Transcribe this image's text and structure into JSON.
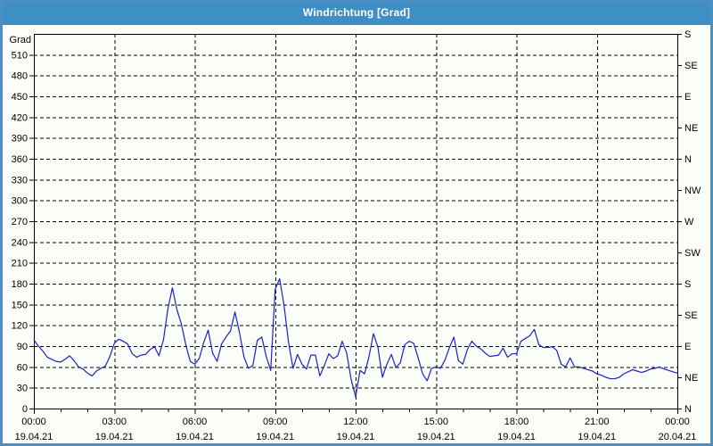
{
  "window": {
    "title": "Windrichtung [Grad]",
    "colors": {
      "titlebar": "#3f8fc7",
      "title_text": "#ffffff",
      "frame": "#4a90c6",
      "background": "#fbfdf9",
      "plot_border": "#000000",
      "grid": "#000000",
      "line": "#1f1fc8"
    }
  },
  "chart_data": {
    "type": "line",
    "title": "Windrichtung [Grad]",
    "y_left": {
      "label": "Grad",
      "min": 0,
      "max": 540,
      "tick_step": 30,
      "tick_labels": [
        "0",
        "30",
        "60",
        "90",
        "120",
        "150",
        "180",
        "210",
        "240",
        "270",
        "300",
        "330",
        "360",
        "390",
        "420",
        "450",
        "480",
        "510"
      ]
    },
    "y_right": {
      "tick_step_degrees": 45,
      "labels_top_to_bottom": [
        "S",
        "SE",
        "E",
        "NE",
        "N",
        "NW",
        "W",
        "SW",
        "S",
        "SE",
        "E",
        "NE",
        "N"
      ]
    },
    "x_axis": {
      "hours_span": 24,
      "minor_tick_hours": 1,
      "major_tick_hours": 3,
      "major_ticks": [
        {
          "time": "00:00",
          "date": "19.04.21"
        },
        {
          "time": "03:00",
          "date": "19.04.21"
        },
        {
          "time": "06:00",
          "date": "19.04.21"
        },
        {
          "time": "09:00",
          "date": "19.04.21"
        },
        {
          "time": "12:00",
          "date": "19.04.21"
        },
        {
          "time": "15:00",
          "date": "19.04.21"
        },
        {
          "time": "18:00",
          "date": "19.04.21"
        },
        {
          "time": "21:00",
          "date": "19.04.21"
        },
        {
          "time": "00:00",
          "date": "20.04.21"
        }
      ]
    },
    "series": [
      {
        "color": "#1f1fc8",
        "sample_interval_minutes": 10,
        "start_time": "00:00",
        "values": [
          99,
          90,
          83,
          74,
          71,
          68,
          67,
          71,
          76,
          69,
          60,
          57,
          51,
          47,
          54,
          58,
          61,
          75,
          94,
          100,
          97,
          93,
          79,
          74,
          77,
          78,
          85,
          89,
          76,
          99,
          144,
          174,
          143,
          122,
          92,
          68,
          64,
          72,
          95,
          113,
          80,
          68,
          93,
          103,
          112,
          139,
          110,
          75,
          58,
          62,
          98,
          103,
          75,
          55,
          172,
          187,
          148,
          95,
          58,
          78,
          64,
          57,
          77,
          77,
          47,
          62,
          79,
          72,
          76,
          97,
          80,
          42,
          17,
          55,
          50,
          75,
          108,
          88,
          45,
          64,
          78,
          59,
          66,
          92,
          97,
          94,
          73,
          50,
          40,
          58,
          60,
          58,
          70,
          88,
          103,
          69,
          64,
          85,
          97,
          90,
          86,
          80,
          75,
          76,
          77,
          87,
          74,
          79,
          79,
          97,
          101,
          105,
          114,
          92,
          88,
          88,
          89,
          84,
          64,
          60,
          73,
          60,
          60,
          58,
          56,
          54,
          50,
          48,
          45,
          43,
          43,
          45,
          50,
          53,
          56,
          54,
          52,
          54,
          57,
          58,
          60,
          57,
          55,
          53,
          51
        ]
      }
    ]
  }
}
